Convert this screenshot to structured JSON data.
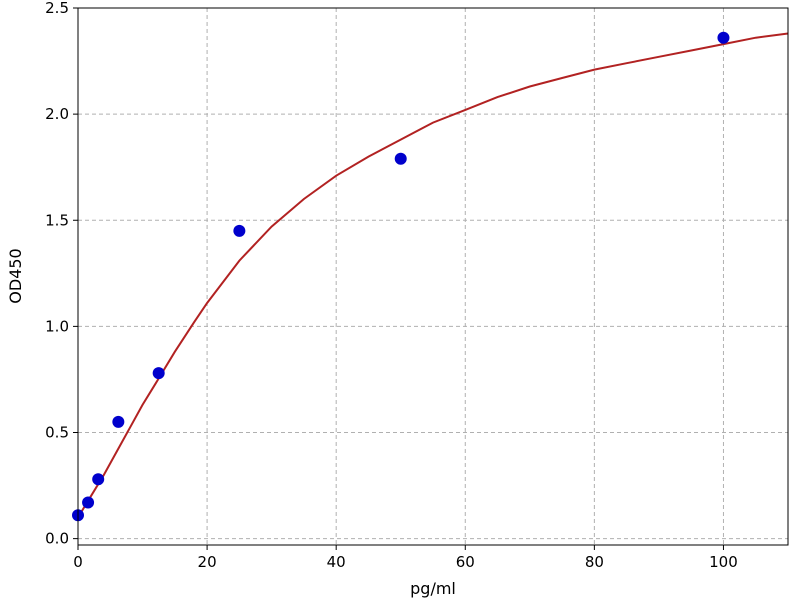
{
  "chart_data": {
    "type": "scatter",
    "title": "",
    "xlabel": "pg/ml",
    "ylabel": "OD450",
    "xlim": [
      0,
      110
    ],
    "ylim": [
      -0.03,
      2.5
    ],
    "xticks": [
      0,
      20,
      40,
      60,
      80,
      100
    ],
    "yticks": [
      0.0,
      0.5,
      1.0,
      1.5,
      2.0,
      2.5
    ],
    "xtick_labels": [
      "0",
      "20",
      "40",
      "60",
      "80",
      "100"
    ],
    "ytick_labels": [
      "0.0",
      "0.5",
      "1.0",
      "1.5",
      "2.0",
      "2.5"
    ],
    "grid": true,
    "points": {
      "x": [
        0,
        1.56,
        3.13,
        6.25,
        12.5,
        25,
        50,
        100
      ],
      "y": [
        0.11,
        0.17,
        0.28,
        0.55,
        0.78,
        1.45,
        1.79,
        2.36
      ],
      "color": "#0000cc"
    },
    "fit_curve": {
      "color": "#b22222",
      "x": [
        0,
        2,
        4,
        6,
        8,
        10,
        12,
        15,
        18,
        20,
        25,
        30,
        35,
        40,
        45,
        50,
        55,
        60,
        65,
        70,
        75,
        80,
        85,
        90,
        95,
        100,
        105,
        110
      ],
      "y": [
        0.1,
        0.2,
        0.3,
        0.41,
        0.52,
        0.63,
        0.73,
        0.88,
        1.02,
        1.11,
        1.31,
        1.47,
        1.6,
        1.71,
        1.8,
        1.88,
        1.96,
        2.02,
        2.08,
        2.13,
        2.17,
        2.21,
        2.24,
        2.27,
        2.3,
        2.33,
        2.36,
        2.38
      ]
    }
  }
}
